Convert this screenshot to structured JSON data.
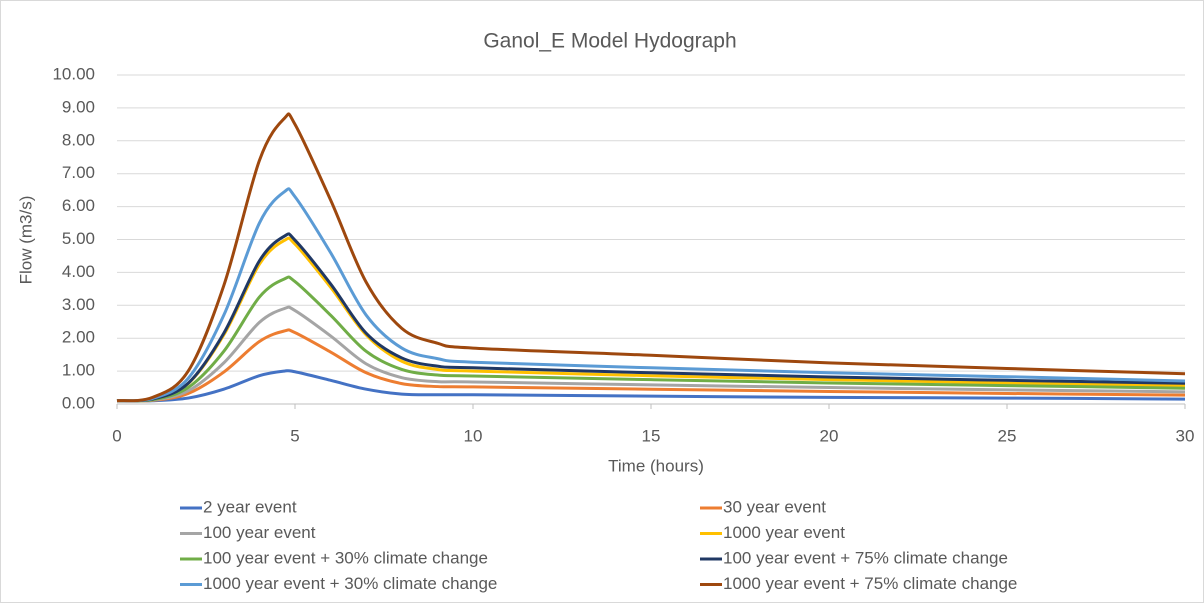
{
  "chart_data": {
    "type": "line",
    "title": "Ganol_E Model Hydograph",
    "x_label": "Time (hours)",
    "y_label": "Flow (m3/s)",
    "x": [
      0,
      1,
      2,
      3,
      4,
      4.7,
      5,
      6,
      7,
      8,
      9,
      10,
      15,
      20,
      25,
      30
    ],
    "xlim": [
      0,
      30
    ],
    "xticks": [
      0,
      5,
      10,
      15,
      20,
      25,
      30
    ],
    "ylim": [
      0,
      10
    ],
    "yticks": [
      {
        "value": 0,
        "label": "0.00"
      },
      {
        "value": 1,
        "label": "1.00"
      },
      {
        "value": 2,
        "label": "2.00"
      },
      {
        "value": 3,
        "label": "3.00"
      },
      {
        "value": 4,
        "label": "4.00"
      },
      {
        "value": 5,
        "label": "5.00"
      },
      {
        "value": 6,
        "label": "6.00"
      },
      {
        "value": 7,
        "label": "7.00"
      },
      {
        "value": 8,
        "label": "8.00"
      },
      {
        "value": 9,
        "label": "9.00"
      },
      {
        "value": 10,
        "label": "10.00"
      }
    ],
    "grid": true,
    "legend": "bottom",
    "series": [
      {
        "name": "2 year event",
        "color": "#4472c4",
        "values": [
          0.1,
          0.1,
          0.18,
          0.45,
          0.86,
          1.0,
          0.98,
          0.72,
          0.45,
          0.3,
          0.28,
          0.28,
          0.24,
          0.2,
          0.18,
          0.15
        ]
      },
      {
        "name": "30  year event",
        "color": "#ed7d31",
        "values": [
          0.1,
          0.11,
          0.32,
          0.97,
          1.9,
          2.22,
          2.17,
          1.58,
          0.95,
          0.62,
          0.53,
          0.52,
          0.45,
          0.38,
          0.32,
          0.27
        ]
      },
      {
        "name": "100 year event",
        "color": "#a5a5a5",
        "values": [
          0.1,
          0.12,
          0.4,
          1.25,
          2.48,
          2.9,
          2.84,
          2.07,
          1.22,
          0.8,
          0.68,
          0.67,
          0.58,
          0.5,
          0.43,
          0.37
        ]
      },
      {
        "name": "1000 year event",
        "color": "#ffc000",
        "values": [
          0.1,
          0.15,
          0.62,
          2.1,
          4.25,
          4.97,
          4.86,
          3.55,
          2.1,
          1.3,
          1.05,
          1.0,
          0.86,
          0.74,
          0.64,
          0.55
        ]
      },
      {
        "name": "100 year event + 30% climate change",
        "color": "#70ad47",
        "values": [
          0.1,
          0.13,
          0.5,
          1.6,
          3.25,
          3.8,
          3.72,
          2.7,
          1.6,
          1.05,
          0.88,
          0.85,
          0.74,
          0.64,
          0.56,
          0.48
        ]
      },
      {
        "name": "100 year event + 75% climate change",
        "color": "#203864",
        "values": [
          0.1,
          0.15,
          0.63,
          2.15,
          4.35,
          5.1,
          4.98,
          3.65,
          2.15,
          1.4,
          1.15,
          1.1,
          0.95,
          0.82,
          0.72,
          0.63
        ]
      },
      {
        "name": "1000 year event + 30% climate change",
        "color": "#5b9bd5",
        "values": [
          0.1,
          0.17,
          0.78,
          2.7,
          5.5,
          6.45,
          6.3,
          4.6,
          2.7,
          1.7,
          1.38,
          1.27,
          1.1,
          0.95,
          0.83,
          0.7
        ]
      },
      {
        "name": "1000 year event + 75% climate change",
        "color": "#9e480e",
        "values": [
          0.1,
          0.2,
          1.0,
          3.6,
          7.4,
          8.68,
          8.5,
          6.2,
          3.7,
          2.3,
          1.85,
          1.7,
          1.48,
          1.25,
          1.08,
          0.92
        ]
      }
    ]
  }
}
